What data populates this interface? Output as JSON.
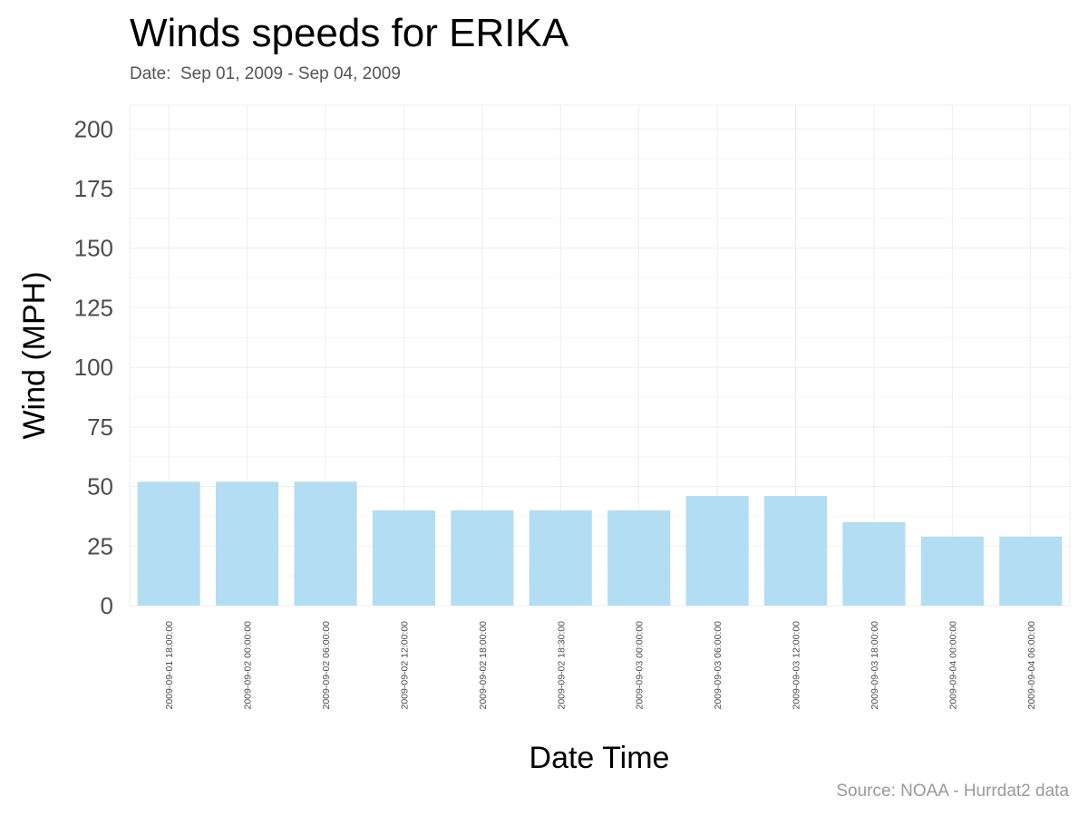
{
  "chart_data": {
    "type": "bar",
    "title": "Winds speeds for ERIKA",
    "subtitle": "Date:  Sep 01, 2009 - Sep 04, 2009",
    "caption": "Source: NOAA - Hurrdat2 data",
    "xlabel": "Date Time",
    "ylabel": "Wind (MPH)",
    "ylim": [
      0,
      210
    ],
    "yticks": [
      0,
      25,
      50,
      75,
      100,
      125,
      150,
      175,
      200
    ],
    "grid": true,
    "legend": "none",
    "bar_color": "#b3ddf2",
    "categories": [
      "2009-09-01 18:00:00",
      "2009-09-02 00:00:00",
      "2009-09-02 06:00:00",
      "2009-09-02 12:00:00",
      "2009-09-02 18:00:00",
      "2009-09-02 18:30:00",
      "2009-09-03 00:00:00",
      "2009-09-03 06:00:00",
      "2009-09-03 12:00:00",
      "2009-09-03 18:00:00",
      "2009-09-04 00:00:00",
      "2009-09-04 06:00:00"
    ],
    "values": [
      52,
      52,
      52,
      40,
      40,
      40,
      40,
      46,
      46,
      35,
      29,
      29
    ]
  }
}
